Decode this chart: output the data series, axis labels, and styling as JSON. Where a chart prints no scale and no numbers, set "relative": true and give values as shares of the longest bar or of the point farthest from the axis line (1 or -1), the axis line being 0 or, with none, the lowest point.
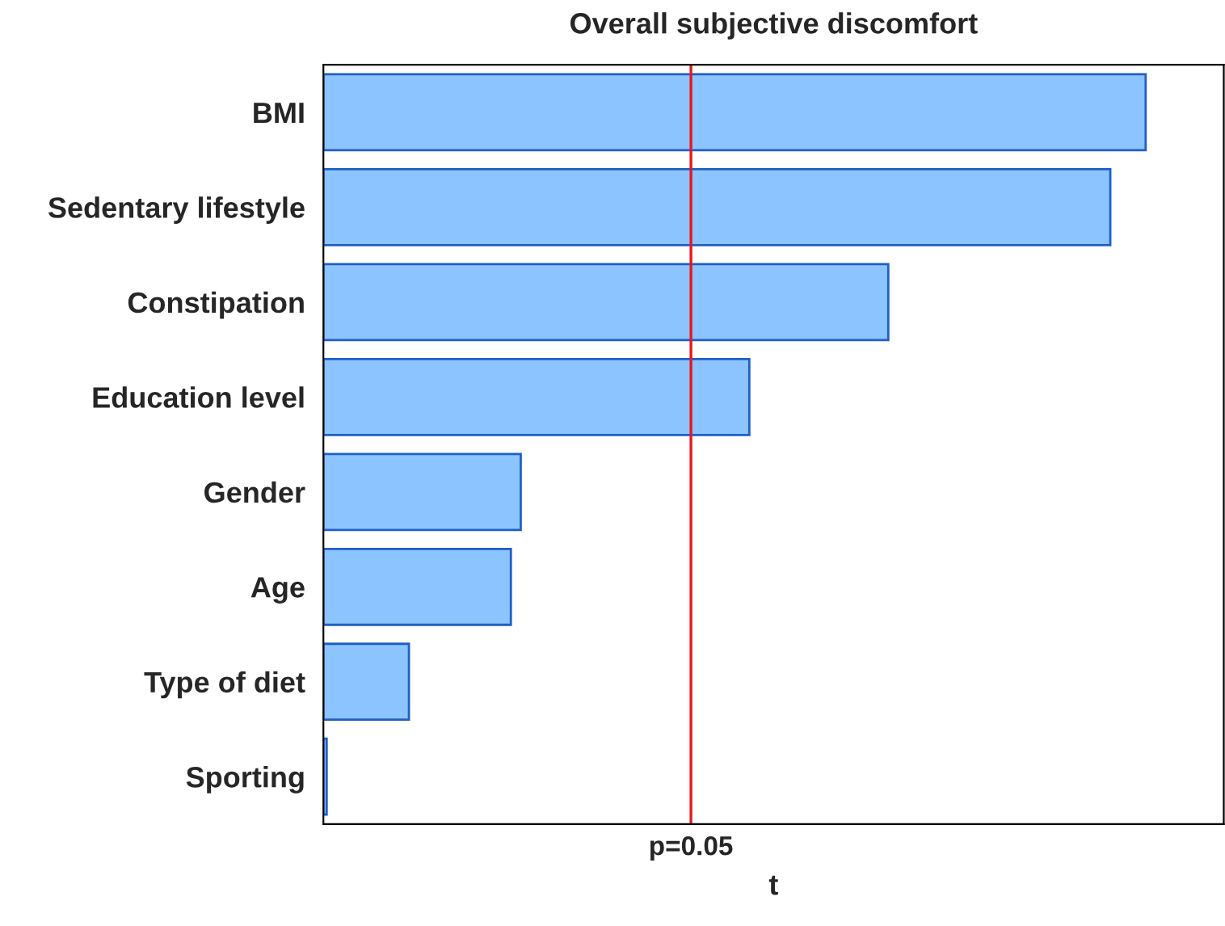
{
  "chart_data": {
    "type": "bar",
    "orientation": "horizontal",
    "relative": true,
    "title": "Overall subjective discomfort",
    "xlabel": "t",
    "categories": [
      "BMI",
      "Sedentary lifestyle",
      "Constipation",
      "Education level",
      "Gender",
      "Age",
      "Type of diet",
      "Sporting"
    ],
    "values": [
      1,
      0.957,
      0.687,
      0.518,
      0.24,
      0.228,
      0.104,
      0.004
    ],
    "color": "#8cc4ff",
    "ref_lines": [
      {
        "axis": "x",
        "value": 0.447,
        "color": "#e8141c"
      }
    ],
    "annotations": [
      "p=0.05"
    ],
    "grid": false
  }
}
